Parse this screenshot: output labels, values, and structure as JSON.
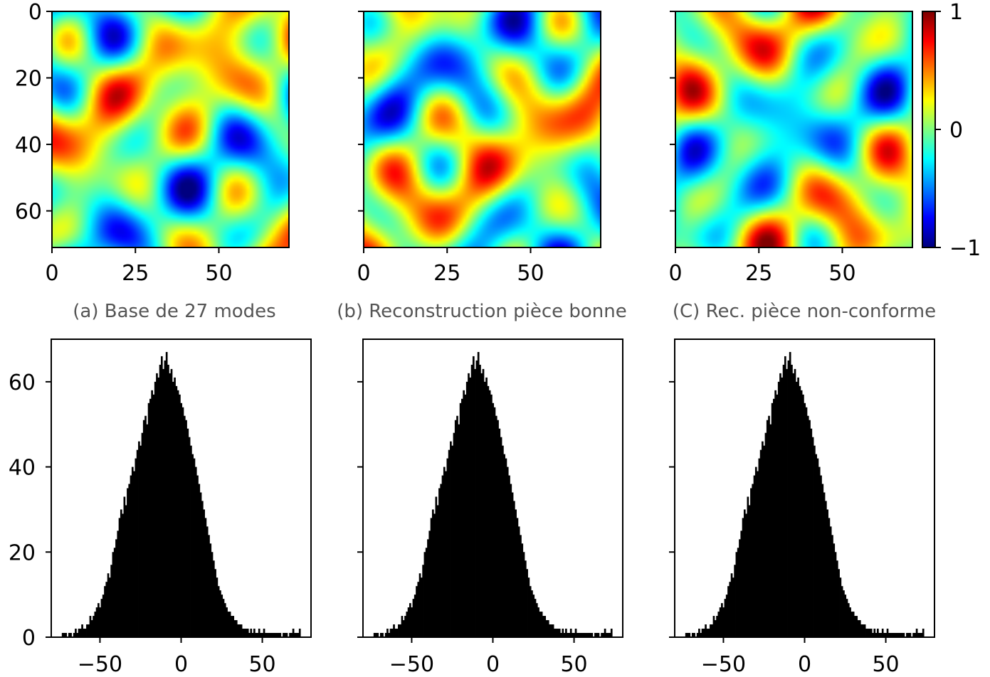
{
  "chart_data": [
    {
      "type": "heatmap",
      "caption": "(a) Base de 27 modes",
      "colormap": "jet",
      "field_seed": 1,
      "grid_shape": [
        72,
        72
      ],
      "xticks": [
        0,
        25,
        50
      ],
      "yticks": [
        0,
        20,
        40,
        60
      ],
      "xlim": [
        0,
        71
      ],
      "ylim": [
        71,
        0
      ]
    },
    {
      "type": "heatmap",
      "caption": "(b) Reconstruction pièce bonne",
      "colormap": "jet",
      "field_seed": 2,
      "grid_shape": [
        72,
        72
      ],
      "xticks": [
        0,
        25,
        50
      ],
      "yticks": [
        0,
        20,
        40,
        60
      ],
      "xlim": [
        0,
        71
      ],
      "ylim": [
        71,
        0
      ]
    },
    {
      "type": "heatmap",
      "caption": "(C) Rec. pièce non-conforme",
      "colormap": "jet",
      "field_seed": 3,
      "grid_shape": [
        72,
        72
      ],
      "xticks": [
        0,
        25,
        50
      ],
      "yticks": [
        0,
        20,
        40,
        60
      ],
      "xlim": [
        0,
        71
      ],
      "ylim": [
        71,
        0
      ],
      "colorbar": {
        "ticks": [
          1,
          0,
          -1
        ],
        "labels": [
          "1",
          "0",
          "−1"
        ],
        "range": [
          -1,
          1
        ]
      }
    },
    {
      "type": "bar",
      "subtype": "histogram",
      "color": "#000000",
      "bin_centers_from": -73,
      "bin_width": 1,
      "counts": [
        1,
        1,
        1,
        0,
        1,
        1,
        0,
        1,
        2,
        1,
        2,
        2,
        3,
        2,
        2,
        3,
        3,
        5,
        4,
        5,
        6,
        7,
        8,
        7,
        9,
        10,
        12,
        13,
        15,
        14,
        17,
        20,
        21,
        23,
        25,
        28,
        30,
        29,
        33,
        31,
        35,
        36,
        38,
        40,
        39,
        42,
        44,
        46,
        45,
        48,
        51,
        52,
        50,
        55,
        56,
        58,
        57,
        60,
        62,
        61,
        64,
        66,
        63,
        65,
        67,
        64,
        62,
        63,
        60,
        61,
        59,
        58,
        57,
        55,
        54,
        52,
        51,
        49,
        47,
        45,
        43,
        42,
        40,
        38,
        36,
        34,
        32,
        30,
        28,
        26,
        24,
        22,
        20,
        18,
        16,
        14,
        12,
        11,
        10,
        9,
        8,
        7,
        6,
        6,
        5,
        5,
        4,
        4,
        3,
        3,
        3,
        2,
        2,
        2,
        2,
        1,
        2,
        1,
        2,
        1,
        1,
        2,
        1,
        1,
        2,
        1,
        1,
        1,
        1,
        1,
        1,
        1,
        1,
        1,
        1,
        0,
        1,
        1,
        1,
        0,
        1,
        1,
        2,
        1,
        1,
        1,
        2
      ],
      "xticks": [
        -50,
        0,
        50
      ],
      "xticklabels": [
        "−50",
        "0",
        "50"
      ],
      "yticks": [
        0,
        20,
        40,
        60
      ],
      "xlim": [
        -80,
        80
      ],
      "ylim": [
        0,
        70
      ]
    },
    {
      "type": "bar",
      "subtype": "histogram",
      "color": "#000000",
      "bin_centers_from": -73,
      "bin_width": 1,
      "counts": [
        1,
        1,
        1,
        0,
        1,
        1,
        0,
        1,
        2,
        1,
        2,
        2,
        3,
        2,
        2,
        3,
        3,
        5,
        4,
        5,
        6,
        7,
        8,
        7,
        9,
        10,
        12,
        13,
        15,
        14,
        17,
        20,
        21,
        23,
        25,
        28,
        30,
        29,
        33,
        31,
        35,
        36,
        38,
        40,
        39,
        42,
        44,
        46,
        45,
        48,
        51,
        52,
        50,
        55,
        56,
        58,
        57,
        60,
        62,
        61,
        64,
        66,
        63,
        65,
        67,
        64,
        62,
        63,
        60,
        61,
        59,
        58,
        57,
        55,
        54,
        52,
        51,
        49,
        47,
        45,
        43,
        42,
        40,
        38,
        36,
        34,
        32,
        30,
        28,
        26,
        24,
        22,
        20,
        18,
        16,
        14,
        12,
        11,
        10,
        9,
        8,
        7,
        6,
        6,
        5,
        5,
        4,
        4,
        3,
        3,
        3,
        2,
        2,
        2,
        2,
        1,
        2,
        1,
        2,
        1,
        1,
        2,
        1,
        1,
        2,
        1,
        1,
        1,
        1,
        1,
        1,
        1,
        1,
        1,
        1,
        0,
        1,
        1,
        1,
        0,
        1,
        1,
        2,
        1,
        1,
        1,
        2
      ],
      "xticks": [
        -50,
        0,
        50
      ],
      "xticklabels": [
        "−50",
        "0",
        "50"
      ],
      "yticks": [
        0,
        20,
        40,
        60
      ],
      "xlim": [
        -80,
        80
      ],
      "ylim": [
        0,
        70
      ]
    },
    {
      "type": "bar",
      "subtype": "histogram",
      "color": "#000000",
      "bin_centers_from": -73,
      "bin_width": 1,
      "counts": [
        1,
        1,
        1,
        0,
        1,
        1,
        0,
        1,
        2,
        1,
        2,
        2,
        3,
        2,
        2,
        3,
        3,
        5,
        4,
        5,
        6,
        7,
        8,
        7,
        9,
        10,
        12,
        13,
        15,
        14,
        17,
        20,
        21,
        23,
        25,
        28,
        30,
        29,
        33,
        31,
        35,
        36,
        38,
        40,
        39,
        42,
        44,
        46,
        45,
        48,
        51,
        52,
        50,
        55,
        56,
        58,
        57,
        60,
        62,
        61,
        64,
        66,
        63,
        65,
        67,
        64,
        62,
        63,
        60,
        61,
        59,
        58,
        57,
        55,
        54,
        52,
        51,
        49,
        47,
        45,
        43,
        42,
        40,
        38,
        36,
        34,
        32,
        30,
        28,
        26,
        24,
        22,
        20,
        18,
        16,
        14,
        12,
        11,
        10,
        9,
        8,
        7,
        6,
        6,
        5,
        5,
        4,
        4,
        3,
        3,
        3,
        2,
        2,
        2,
        2,
        1,
        2,
        1,
        2,
        1,
        1,
        2,
        1,
        1,
        2,
        1,
        1,
        1,
        1,
        1,
        1,
        1,
        1,
        1,
        1,
        0,
        1,
        1,
        1,
        0,
        1,
        1,
        2,
        1,
        1,
        1,
        2
      ],
      "xticks": [
        -50,
        0,
        50
      ],
      "xticklabels": [
        "−50",
        "0",
        "50"
      ],
      "yticks": [
        0,
        20,
        40,
        60
      ],
      "xlim": [
        -80,
        80
      ],
      "ylim": [
        0,
        70
      ]
    }
  ]
}
